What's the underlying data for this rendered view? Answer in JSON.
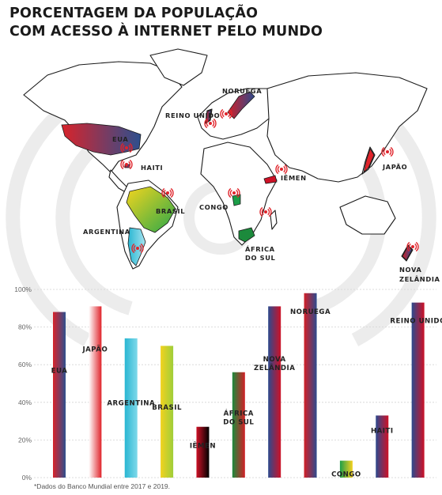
{
  "title": {
    "line1": "PORCENTAGEM DA POPULAÇÃO",
    "line2": "COM ACESSO À INTERNET PELO MUNDO"
  },
  "map": {
    "labels": [
      {
        "id": "eua",
        "text": "EUA"
      },
      {
        "id": "haiti",
        "text": "HAITI"
      },
      {
        "id": "brasil",
        "text": "BRASIL"
      },
      {
        "id": "argentina",
        "text": "ARGENTINA"
      },
      {
        "id": "reino-unido",
        "text": "REINO UNIDO"
      },
      {
        "id": "noruega",
        "text": "NORUEGA"
      },
      {
        "id": "iemen",
        "text": "IÊMEN"
      },
      {
        "id": "congo",
        "text": "CONGO"
      },
      {
        "id": "africa-do-sul",
        "text": "ÁFRICA DO SUL"
      },
      {
        "id": "japao",
        "text": "JAPÃO"
      },
      {
        "id": "nova-zelandia",
        "text": "NOVA ZELÂNDIA"
      }
    ]
  },
  "chart_data": {
    "type": "bar",
    "categories": [
      "EUA",
      "JAPÃO",
      "ARGENTINA",
      "BRASIL",
      "IÊMEN",
      "ÁFRICA DO SUL",
      "NOVA ZELÂNDIA",
      "NORUEGA",
      "CONGO",
      "HAITI",
      "REINO UNIDO"
    ],
    "values": [
      88,
      91,
      74,
      70,
      27,
      56,
      91,
      98,
      9,
      33,
      93
    ],
    "bar_colors": [
      [
        "#d8232a",
        "#2d4f8e"
      ],
      [
        "#ffffff",
        "#e0242b"
      ],
      [
        "#29b6d2",
        "#7fd9ea"
      ],
      [
        "#f2d21e",
        "#9fce3a"
      ],
      [
        "#ce1126",
        "#000000"
      ],
      [
        "#1c8a3c",
        "#d21f26"
      ],
      [
        "#2c4a8e",
        "#ce1126"
      ],
      [
        "#d21f26",
        "#2c4a8e"
      ],
      [
        "#1c9e48",
        "#f5d120"
      ],
      [
        "#2c4a8e",
        "#ce1126"
      ],
      [
        "#2c4a8e",
        "#ce1126"
      ]
    ],
    "yticks": [
      "0%",
      "20%",
      "40%",
      "60%",
      "80%",
      "100%"
    ],
    "ylim": [
      0,
      100
    ]
  },
  "footnote": "*Dados do Banco Mundial entre 2017 e 2019."
}
